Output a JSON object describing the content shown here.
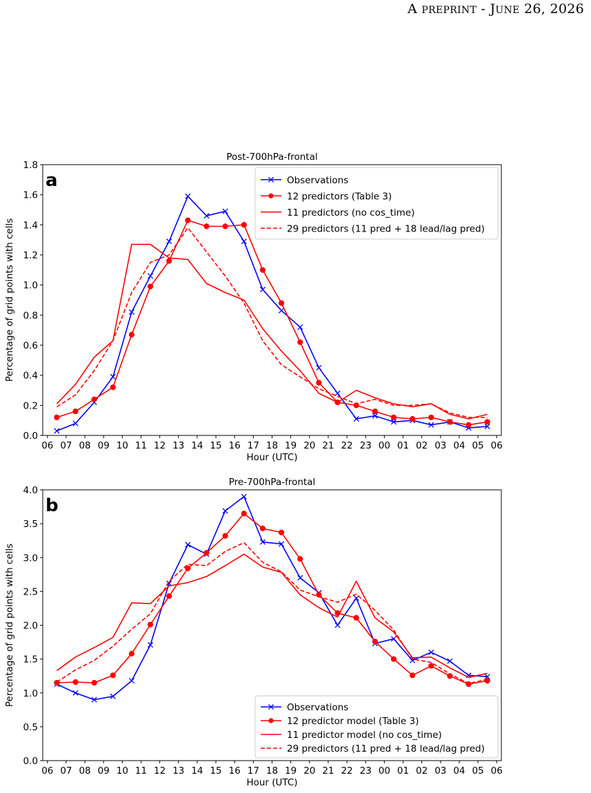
{
  "header": {
    "text": "A preprint - June 26, 2026"
  },
  "chart_data": [
    {
      "type": "line",
      "title": "Post-700hPa-frontal",
      "panel_label": "a",
      "xlabel": "Hour (UTC)",
      "ylabel": "Percentage of grid points with cells",
      "ylim": [
        0,
        1.8
      ],
      "yticks": [
        "0.0",
        "0.2",
        "0.4",
        "0.6",
        "0.8",
        "1.0",
        "1.2",
        "1.4",
        "1.6",
        "1.8"
      ],
      "xticks": [
        "06",
        "07",
        "08",
        "09",
        "10",
        "11",
        "12",
        "13",
        "14",
        "15",
        "16",
        "17",
        "18",
        "19",
        "20",
        "21",
        "22",
        "23",
        "00",
        "01",
        "02",
        "03",
        "04",
        "05",
        "06"
      ],
      "x": [
        0.5,
        1.5,
        2.5,
        3.5,
        4.5,
        5.5,
        6.5,
        7.5,
        8.5,
        9.5,
        10.5,
        11.5,
        12.5,
        13.5,
        14.5,
        15.5,
        16.5,
        17.5,
        18.5,
        19.5,
        20.5,
        21.5,
        22.5,
        23.5
      ],
      "legend_position": "top-right",
      "series": [
        {
          "name": "Observations",
          "color": "#0000ff",
          "style": "solid",
          "marker": "x",
          "values": [
            0.03,
            0.08,
            0.22,
            0.39,
            0.82,
            1.06,
            1.29,
            1.59,
            1.46,
            1.49,
            1.29,
            0.97,
            0.83,
            0.72,
            0.45,
            0.28,
            0.11,
            0.13,
            0.09,
            0.1,
            0.07,
            0.09,
            0.05,
            0.06
          ]
        },
        {
          "name": "12 predictors (Table 3)",
          "color": "#ff0000",
          "style": "solid",
          "marker": "o",
          "values": [
            0.12,
            0.16,
            0.24,
            0.32,
            0.67,
            0.99,
            1.16,
            1.43,
            1.39,
            1.39,
            1.4,
            1.1,
            0.88,
            0.62,
            0.35,
            0.22,
            0.2,
            0.16,
            0.12,
            0.11,
            0.12,
            0.09,
            0.07,
            0.09
          ]
        },
        {
          "name": "11 predictors (no cos_time)",
          "color": "#ff0000",
          "style": "solid",
          "marker": "none",
          "values": [
            0.21,
            0.34,
            0.52,
            0.63,
            1.27,
            1.27,
            1.18,
            1.17,
            1.01,
            0.95,
            0.9,
            0.71,
            0.56,
            0.43,
            0.28,
            0.22,
            0.3,
            0.25,
            0.21,
            0.19,
            0.21,
            0.14,
            0.11,
            0.14
          ]
        },
        {
          "name": "29 predictors (11 pred + 18 lead/lag pred)",
          "color": "#ff0000",
          "style": "dashed",
          "marker": "none",
          "values": [
            0.19,
            0.27,
            0.43,
            0.63,
            0.95,
            1.15,
            1.2,
            1.38,
            1.22,
            1.06,
            0.88,
            0.63,
            0.47,
            0.39,
            0.31,
            0.26,
            0.21,
            0.24,
            0.2,
            0.2,
            0.21,
            0.15,
            0.12,
            0.12
          ]
        }
      ]
    },
    {
      "type": "line",
      "title": "Pre-700hPa-frontal",
      "panel_label": "b",
      "xlabel": "Hour (UTC)",
      "ylabel": "Percentage of grid points with cells",
      "ylim": [
        0,
        4.0
      ],
      "yticks": [
        "0.0",
        "0.5",
        "1.0",
        "1.5",
        "2.0",
        "2.5",
        "3.0",
        "3.5",
        "4.0"
      ],
      "xticks": [
        "06",
        "07",
        "08",
        "09",
        "10",
        "11",
        "12",
        "13",
        "14",
        "15",
        "16",
        "17",
        "18",
        "19",
        "20",
        "21",
        "22",
        "23",
        "00",
        "01",
        "02",
        "03",
        "04",
        "05",
        "06"
      ],
      "x": [
        0.5,
        1.5,
        2.5,
        3.5,
        4.5,
        5.5,
        6.5,
        7.5,
        8.5,
        9.5,
        10.5,
        11.5,
        12.5,
        13.5,
        14.5,
        15.5,
        16.5,
        17.5,
        18.5,
        19.5,
        20.5,
        21.5,
        22.5,
        23.5
      ],
      "legend_position": "bottom-right",
      "series": [
        {
          "name": "Observations",
          "color": "#0000ff",
          "style": "solid",
          "marker": "x",
          "values": [
            1.13,
            1.0,
            0.9,
            0.95,
            1.18,
            1.71,
            2.62,
            3.19,
            3.05,
            3.69,
            3.9,
            3.23,
            3.2,
            2.7,
            2.48,
            2.0,
            2.4,
            1.73,
            1.8,
            1.48,
            1.6,
            1.47,
            1.26,
            1.24
          ]
        },
        {
          "name": "12 predictor model (Table 3)",
          "color": "#ff0000",
          "style": "solid",
          "marker": "o",
          "values": [
            1.15,
            1.16,
            1.15,
            1.26,
            1.58,
            2.01,
            2.43,
            2.84,
            3.07,
            3.32,
            3.65,
            3.43,
            3.37,
            2.98,
            2.45,
            2.18,
            2.11,
            1.76,
            1.5,
            1.26,
            1.4,
            1.25,
            1.13,
            1.18
          ]
        },
        {
          "name": "11 predictor model (no cos_time)",
          "color": "#ff0000",
          "style": "solid",
          "marker": "none",
          "values": [
            1.33,
            1.53,
            1.67,
            1.82,
            2.33,
            2.32,
            2.58,
            2.63,
            2.72,
            2.88,
            3.05,
            2.86,
            2.78,
            2.45,
            2.26,
            2.12,
            2.65,
            2.11,
            1.9,
            1.52,
            1.53,
            1.37,
            1.23,
            1.29
          ]
        },
        {
          "name": "29 predictors (11 pred + 18 lead/lag pred)",
          "color": "#ff0000",
          "style": "dashed",
          "marker": "none",
          "values": [
            1.16,
            1.34,
            1.48,
            1.69,
            1.94,
            2.17,
            2.65,
            2.9,
            2.88,
            3.09,
            3.22,
            2.93,
            2.79,
            2.52,
            2.42,
            2.34,
            2.46,
            2.22,
            1.93,
            1.5,
            1.45,
            1.28,
            1.14,
            1.2
          ]
        }
      ]
    }
  ]
}
